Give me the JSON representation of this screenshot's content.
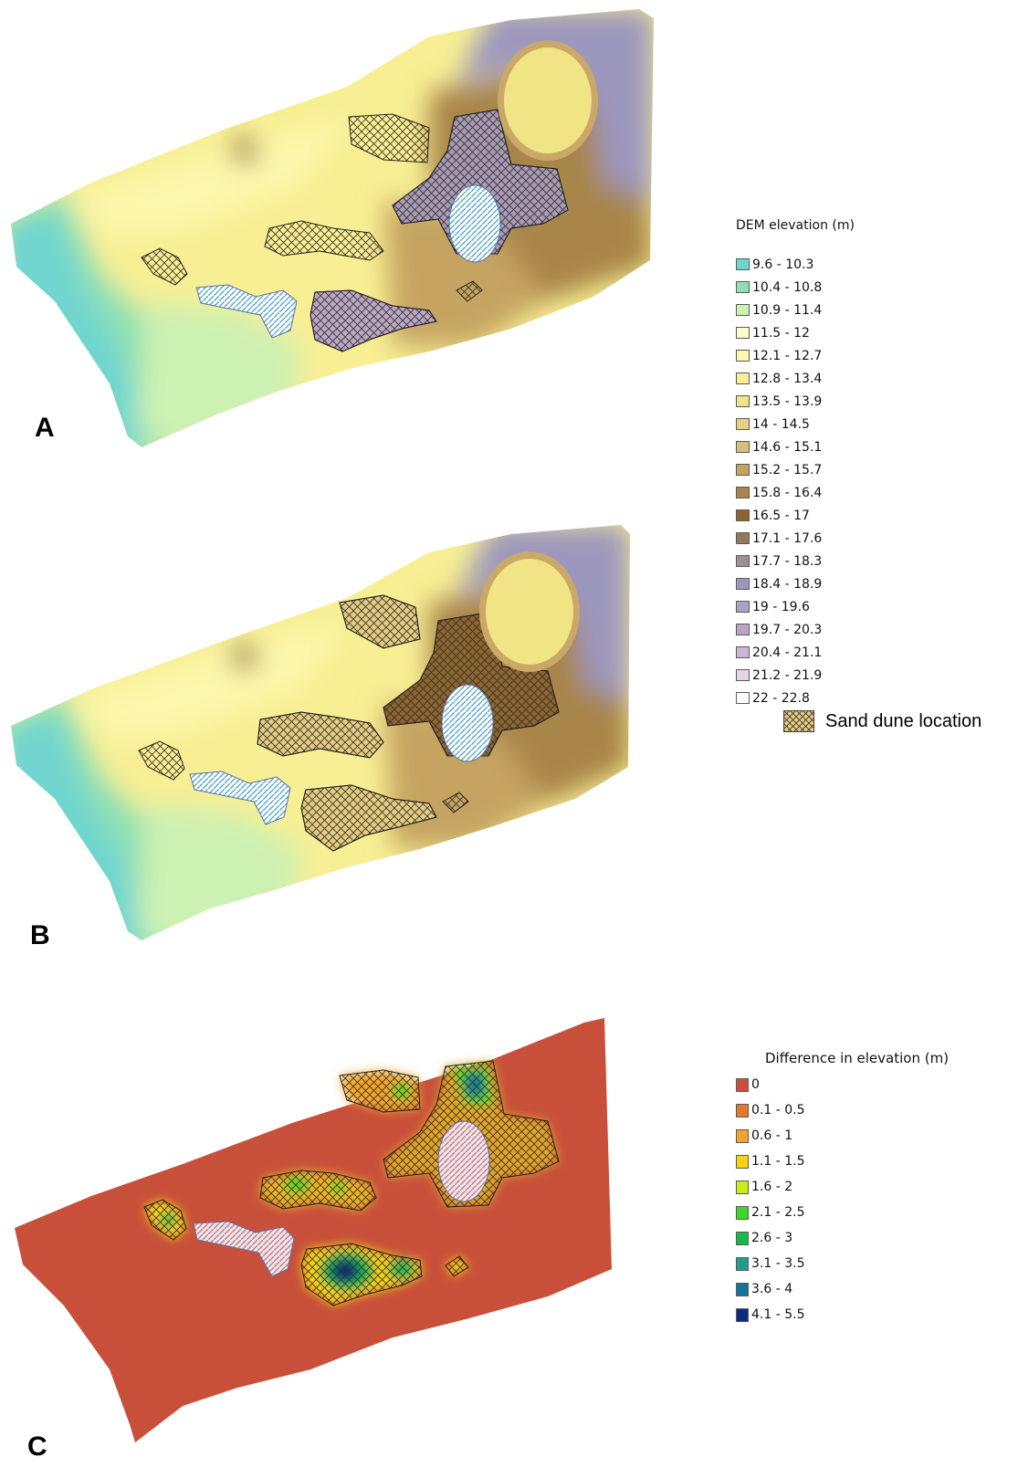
{
  "panels": {
    "a_label": "A",
    "b_label": "B",
    "c_label": "C"
  },
  "dem_legend": {
    "title": "DEM elevation (m)",
    "classes": [
      {
        "label": "9.6 - 10.3",
        "color": "#6fd6cf"
      },
      {
        "label": "10.4 - 10.8",
        "color": "#8ee0b3"
      },
      {
        "label": "10.9 - 11.4",
        "color": "#cdf1b2"
      },
      {
        "label": "11.5 - 12",
        "color": "#fbfbcc"
      },
      {
        "label": "12.1 - 12.7",
        "color": "#fbf7ac"
      },
      {
        "label": "12.8 - 13.4",
        "color": "#f8ef94"
      },
      {
        "label": "13.5 - 13.9",
        "color": "#f1e485"
      },
      {
        "label": "14 - 14.5",
        "color": "#e8d17c"
      },
      {
        "label": "14.6 - 15.1",
        "color": "#d8be78"
      },
      {
        "label": "15.2 - 15.7",
        "color": "#c5a462"
      },
      {
        "label": "15.8 - 16.4",
        "color": "#a8854a"
      },
      {
        "label": "16.5 - 17",
        "color": "#8b6531"
      },
      {
        "label": "17.1 - 17.6",
        "color": "#92785f"
      },
      {
        "label": "17.7 - 18.3",
        "color": "#9e8f92"
      },
      {
        "label": "18.4 - 18.9",
        "color": "#9c97bd"
      },
      {
        "label": "19 - 19.6",
        "color": "#a9a2c4"
      },
      {
        "label": "19.7 - 20.3",
        "color": "#b9a4c4"
      },
      {
        "label": "20.4 - 21.1",
        "color": "#cdb8d4"
      },
      {
        "label": "21.2 - 21.9",
        "color": "#e5d6e6"
      },
      {
        "label": "22 - 22.8",
        "color": "#ffffff"
      }
    ]
  },
  "dune_key": {
    "label": "Sand dune location",
    "color": "#e1cc83"
  },
  "diff_legend": {
    "title": "Difference in elevation (m)",
    "classes": [
      {
        "label": "0",
        "color": "#c8503a"
      },
      {
        "label": "0.1 - 0.5",
        "color": "#e07a2e"
      },
      {
        "label": "0.6 - 1",
        "color": "#efa52b"
      },
      {
        "label": "1.1 - 1.5",
        "color": "#f7d312"
      },
      {
        "label": "1.6 - 2",
        "color": "#c9ec1e"
      },
      {
        "label": "2.1 - 2.5",
        "color": "#3cd62c"
      },
      {
        "label": "2.6 - 3",
        "color": "#15b84c"
      },
      {
        "label": "3.1 - 3.5",
        "color": "#1f9e8c"
      },
      {
        "label": "3.6 - 4",
        "color": "#147499"
      },
      {
        "label": "4.1 - 5.5",
        "color": "#0d2a7e"
      }
    ]
  }
}
